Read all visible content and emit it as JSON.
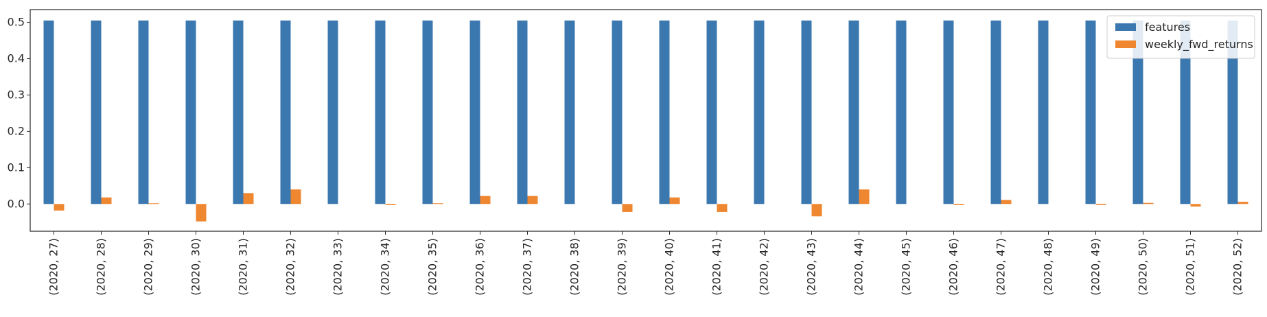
{
  "chart_data": {
    "type": "bar",
    "categories": [
      "(2020, 27)",
      "(2020, 28)",
      "(2020, 29)",
      "(2020, 30)",
      "(2020, 31)",
      "(2020, 32)",
      "(2020, 33)",
      "(2020, 34)",
      "(2020, 35)",
      "(2020, 36)",
      "(2020, 37)",
      "(2020, 38)",
      "(2020, 39)",
      "(2020, 40)",
      "(2020, 41)",
      "(2020, 42)",
      "(2020, 43)",
      "(2020, 44)",
      "(2020, 45)",
      "(2020, 46)",
      "(2020, 47)",
      "(2020, 48)",
      "(2020, 49)",
      "(2020, 50)",
      "(2020, 51)",
      "(2020, 52)"
    ],
    "series": [
      {
        "name": "features",
        "color": "#3c78b0",
        "values": [
          0.505,
          0.505,
          0.505,
          0.505,
          0.505,
          0.505,
          0.505,
          0.505,
          0.505,
          0.505,
          0.505,
          0.505,
          0.505,
          0.505,
          0.505,
          0.505,
          0.505,
          0.505,
          0.505,
          0.505,
          0.505,
          0.505,
          0.505,
          0.505,
          0.505,
          0.505
        ]
      },
      {
        "name": "weekly_fwd_returns",
        "color": "#ef8630",
        "values": [
          -0.018,
          0.018,
          0.002,
          -0.048,
          0.03,
          0.04,
          0.0,
          -0.003,
          0.002,
          0.022,
          0.022,
          0.0,
          -0.022,
          0.018,
          -0.022,
          0.0,
          -0.034,
          0.04,
          0.0,
          -0.003,
          0.011,
          0.0,
          -0.003,
          0.003,
          -0.007,
          0.006
        ]
      }
    ],
    "ylim": [
      -0.075,
      0.535
    ],
    "yticks": [
      0.0,
      0.1,
      0.2,
      0.3,
      0.4,
      0.5
    ],
    "ytick_labels": [
      "0.0",
      "0.1",
      "0.2",
      "0.3",
      "0.4",
      "0.5"
    ],
    "xlabel": "",
    "ylabel": "",
    "title": "",
    "grid": false,
    "legend_position": "top-right"
  }
}
